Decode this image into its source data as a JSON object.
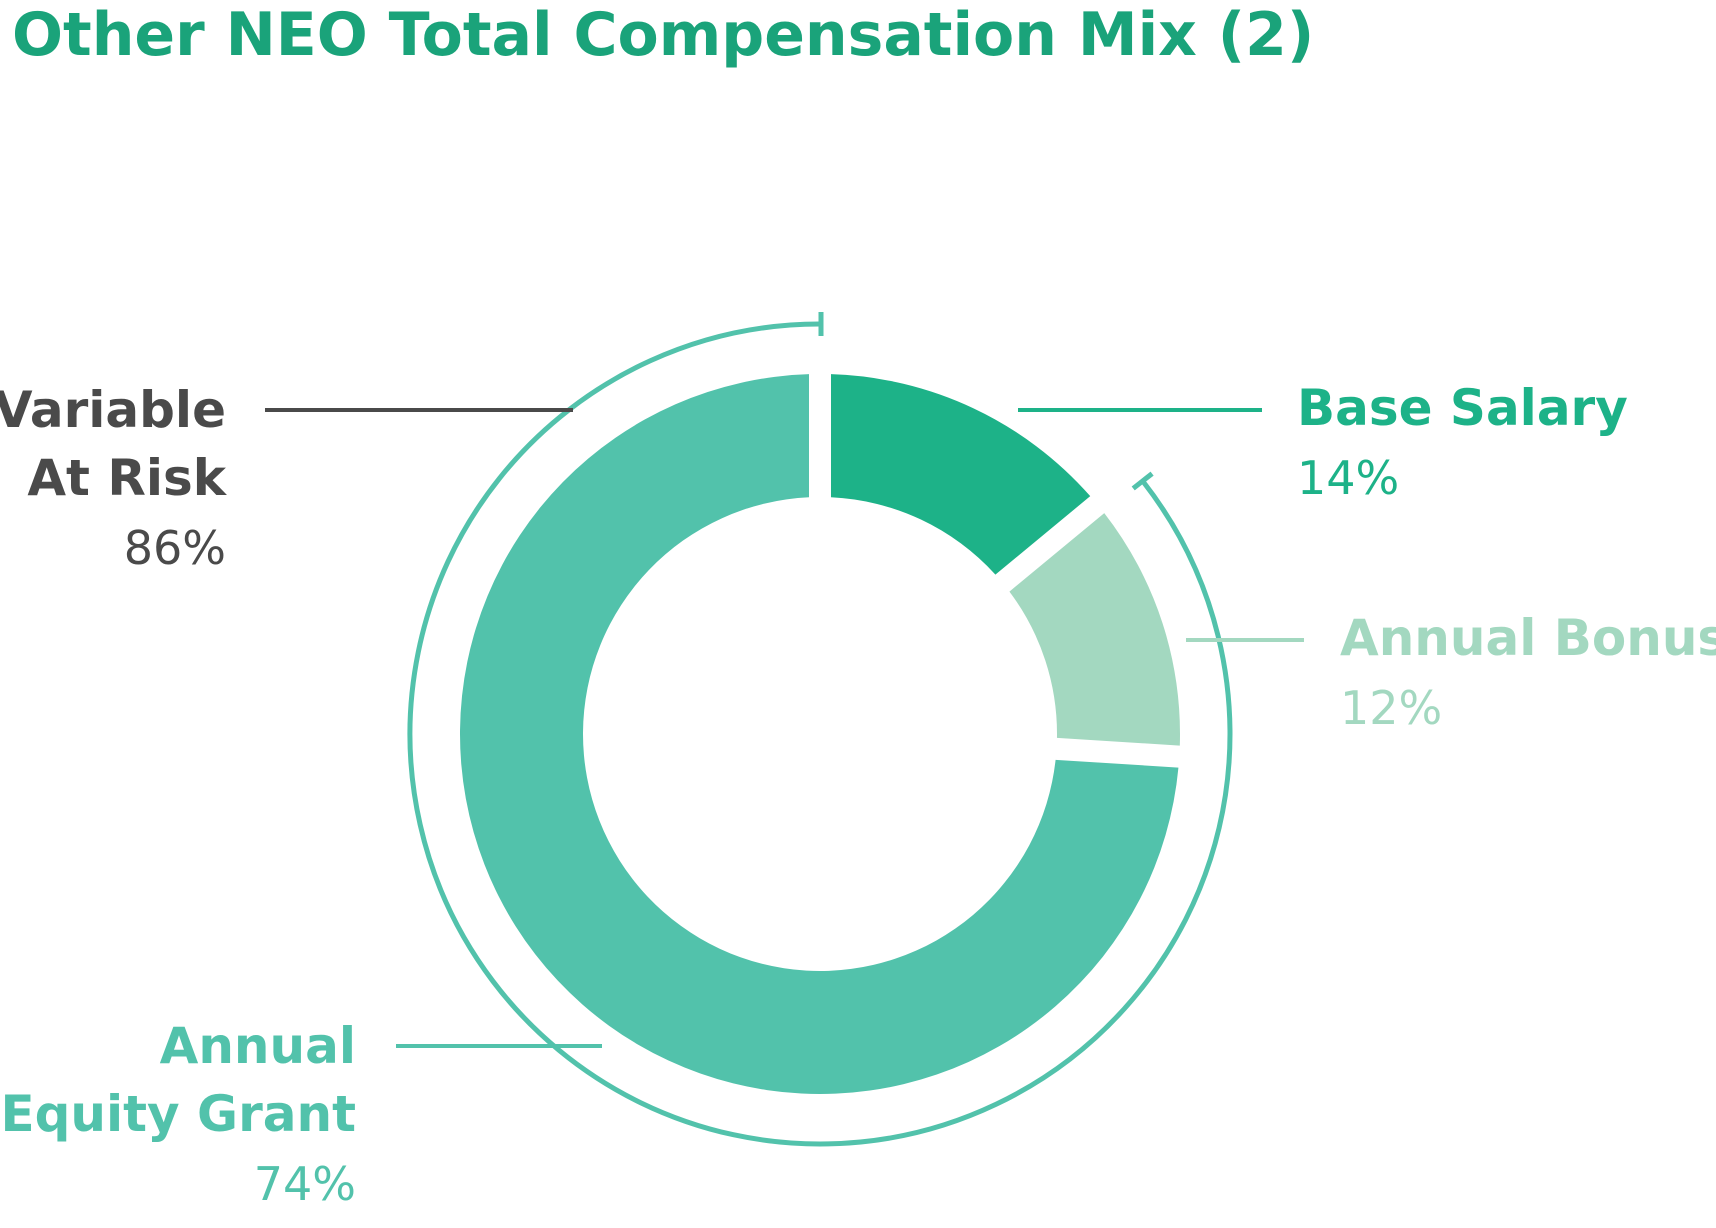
{
  "title": "Other NEO Total Compensation Mix (2)",
  "colors": {
    "title": "#1aa37a",
    "base_salary": "#1db288",
    "annual_bonus": "#a3d8c0",
    "annual_equity_grant": "#52c2ab",
    "variable_at_risk": "#4a4a4a",
    "bracket": "#52c2ab"
  },
  "chart_data": {
    "type": "pie",
    "title": "Other NEO Total Compensation Mix (2)",
    "style": "donut",
    "slices": [
      {
        "label": "Base Salary",
        "value": 14,
        "display": "14%",
        "color": "#1db288"
      },
      {
        "label": "Annual Bonus",
        "value": 12,
        "display": "12%",
        "color": "#a3d8c0"
      },
      {
        "label": "Annual Equity Grant",
        "value": 74,
        "display": "74%",
        "color": "#52c2ab"
      }
    ],
    "groups": [
      {
        "label": "Variable At Risk",
        "value": 86,
        "display": "86%",
        "includes": [
          "Annual Bonus",
          "Annual Equity Grant"
        ],
        "color": "#4a4a4a"
      }
    ]
  },
  "labels": {
    "variable_line1": "Variable",
    "variable_line2": "At Risk",
    "variable_pct": "86%",
    "base_name": "Base Salary",
    "base_pct": "14%",
    "bonus_name": "Annual Bonus",
    "bonus_pct": "12%",
    "equity_line1": "Annual",
    "equity_line2": "Equity Grant",
    "equity_pct": "74%"
  }
}
